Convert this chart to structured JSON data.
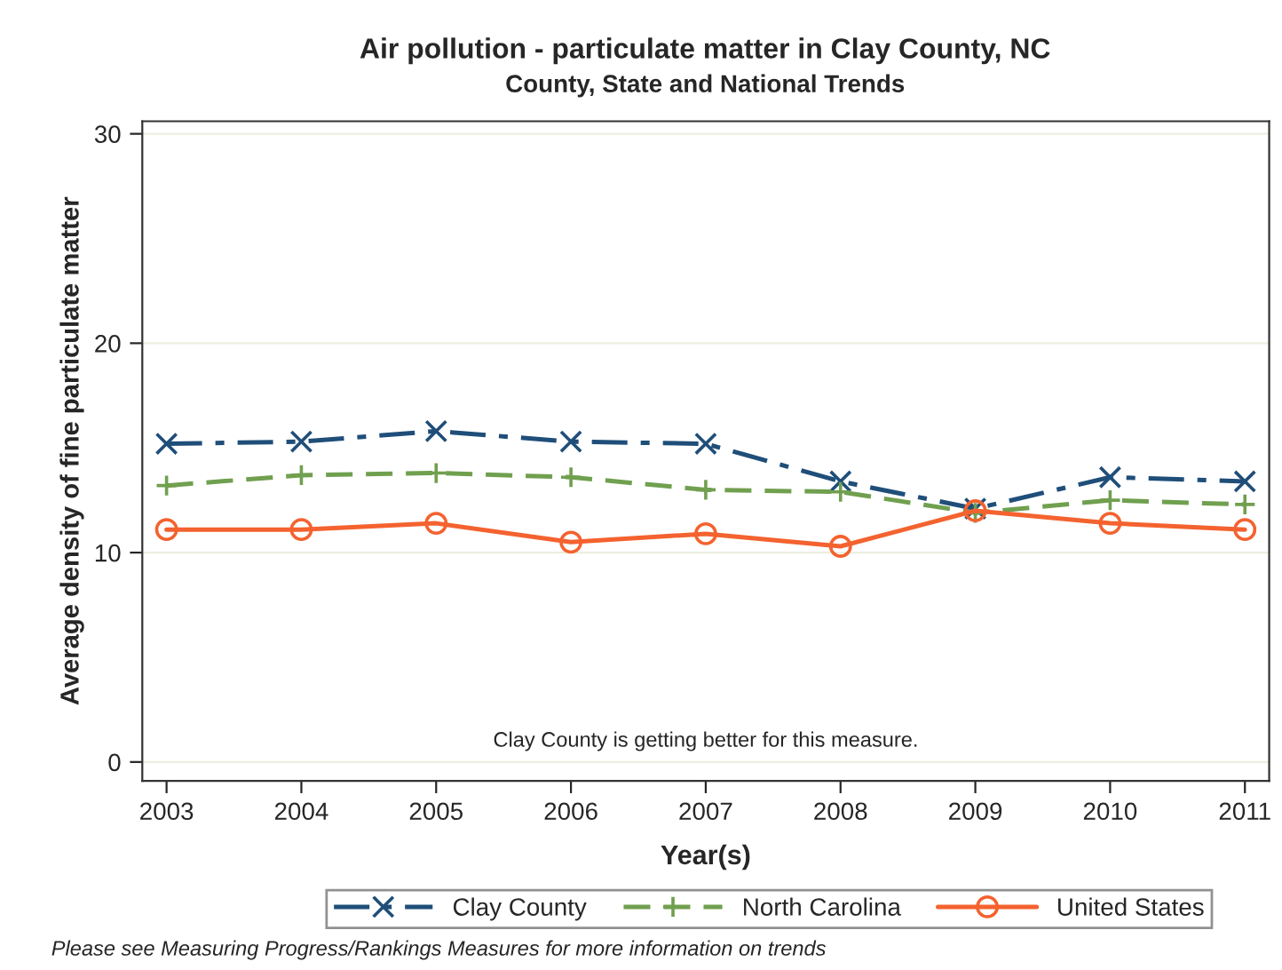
{
  "chart_data": {
    "type": "line",
    "title": "Air pollution - particulate matter in Clay County, NC",
    "subtitle": "County, State and National Trends",
    "xlabel": "Year(s)",
    "ylabel": "Average density of fine particulate matter",
    "x": [
      2003,
      2004,
      2005,
      2006,
      2007,
      2008,
      2009,
      2010,
      2011
    ],
    "series": [
      {
        "name": "Clay County",
        "color": "#1f4e79",
        "marker": "cross",
        "line_style": "dashdot",
        "values": [
          15.2,
          15.3,
          15.8,
          15.3,
          15.2,
          13.4,
          12.1,
          13.6,
          13.4
        ]
      },
      {
        "name": "North Carolina",
        "color": "#70a04f",
        "marker": "plus",
        "line_style": "dashed",
        "values": [
          13.2,
          13.7,
          13.8,
          13.6,
          13.0,
          12.9,
          11.9,
          12.5,
          12.3
        ]
      },
      {
        "name": "United States",
        "color": "#f4622f",
        "marker": "circle",
        "line_style": "solid",
        "values": [
          11.1,
          11.1,
          11.4,
          10.5,
          10.9,
          10.3,
          12.0,
          11.4,
          11.1
        ]
      }
    ],
    "xlim": [
      2002.82,
      2011.18
    ],
    "xticks": [
      2003,
      2004,
      2005,
      2006,
      2007,
      2008,
      2009,
      2010,
      2011
    ],
    "ylim": [
      -0.9,
      30.6
    ],
    "yticks": [
      0,
      10,
      20,
      30
    ],
    "grid": "y",
    "legend": "bottom",
    "annotations": [
      "Clay County is getting better for this measure.",
      "Please see Measuring Progress/Rankings Measures for more information on trends"
    ]
  }
}
